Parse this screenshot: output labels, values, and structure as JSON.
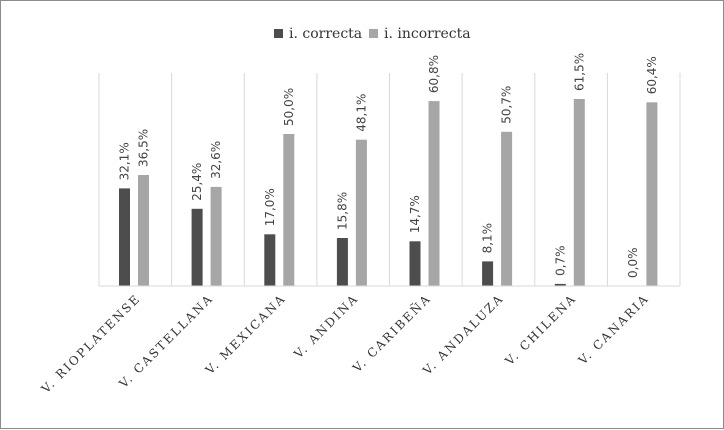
{
  "chart_data": {
    "type": "bar",
    "categories": [
      "V. RIOPLATENSE",
      "V. CASTELLANA",
      "V. MEXICANA",
      "V. ANDINA",
      "V. CARIBEÑA",
      "V. ANDALUZA",
      "V. CHILENA",
      "V. CANARIA"
    ],
    "series": [
      {
        "name": "i. correcta",
        "color": "#4d4d4d",
        "values": [
          32.1,
          25.4,
          17.0,
          15.8,
          14.7,
          8.1,
          0.7,
          0.0
        ],
        "labels": [
          "32,1%",
          "25,4%",
          "17,0%",
          "15,8%",
          "14,7%",
          "8,1%",
          "0,7%",
          "0,0%"
        ]
      },
      {
        "name": "i. incorrecta",
        "color": "#a6a6a6",
        "values": [
          36.5,
          32.6,
          50.0,
          48.1,
          60.8,
          50.7,
          61.5,
          60.4
        ],
        "labels": [
          "36,5%",
          "32,6%",
          "50,0%",
          "48,1%",
          "60,8%",
          "50,7%",
          "61,5%",
          "60,4%"
        ]
      }
    ],
    "ylim": [
      0,
      70
    ],
    "legend_position": "top-center",
    "grid": "vertical category separators"
  }
}
